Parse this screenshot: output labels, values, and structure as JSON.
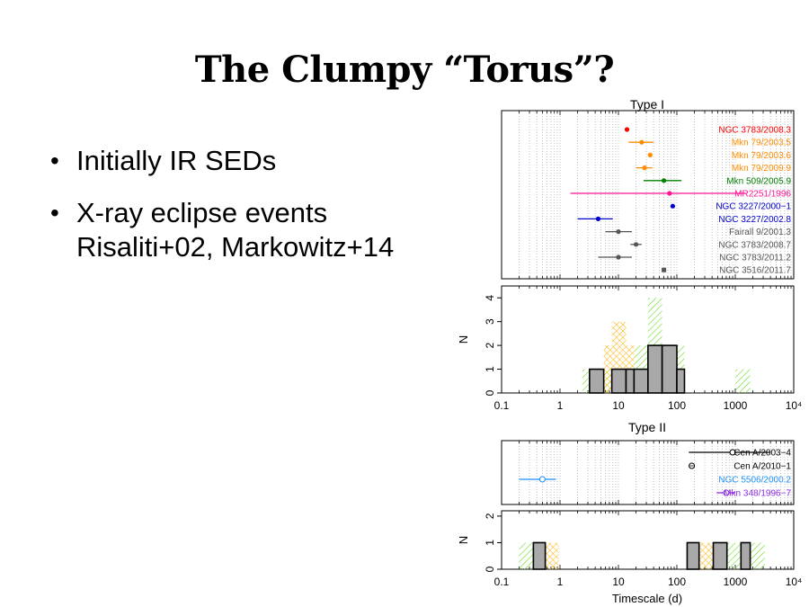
{
  "slide": {
    "title": "The Clumpy “Torus”?",
    "bullets": [
      {
        "line1": "Initially IR SEDs",
        "line2": ""
      },
      {
        "line1": "X-ray eclipse events",
        "line2": "Risaliti+02, Markowitz+14"
      }
    ]
  },
  "chart_data": [
    {
      "type": "scatter",
      "title": "Type I",
      "xscale": "log",
      "xlim": [
        0.1,
        10000
      ],
      "grid": "vertical dotted",
      "legend_position": "right (labels beside each row)",
      "series": [
        {
          "name": "NGC 3783/2008.3",
          "color": "#ff0000",
          "x": 14,
          "xerr": [
            14,
            14
          ]
        },
        {
          "name": "Mkn 79/2003.5",
          "color": "#ff8c00",
          "x": 25,
          "xerr": [
            15,
            40
          ]
        },
        {
          "name": "Mkn 79/2003.6",
          "color": "#ff8c00",
          "x": 35,
          "xerr": [
            32,
            38
          ]
        },
        {
          "name": "Mkn 79/2009.9",
          "color": "#ff8c00",
          "x": 28,
          "xerr": [
            20,
            38
          ]
        },
        {
          "name": "Mkn 509/2005.9",
          "color": "#008000",
          "x": 60,
          "xerr": [
            27,
            120
          ]
        },
        {
          "name": "MR2251/1996",
          "color": "#ff1493",
          "x": 75,
          "xerr": [
            1.5,
            1500
          ]
        },
        {
          "name": "NGC 3227/2000−1",
          "color": "#0000cd",
          "x": 85,
          "xerr": [
            85,
            85
          ]
        },
        {
          "name": "NGC 3227/2002.8",
          "color": "#0000cd",
          "x": 4.5,
          "xerr": [
            2,
            8
          ]
        },
        {
          "name": "Fairall 9/2001.3",
          "color": "#555555",
          "x": 10,
          "xerr": [
            6,
            17
          ]
        },
        {
          "name": "NGC 3783/2008.7",
          "color": "#555555",
          "x": 20,
          "xerr": [
            16,
            25
          ]
        },
        {
          "name": "NGC 3783/2011.2",
          "color": "#555555",
          "x": 10,
          "xerr": [
            4.5,
            17
          ]
        },
        {
          "name": "NGC 3516/2011.7",
          "color": "#555555",
          "x": 60,
          "xerr": [
            60,
            60
          ],
          "marker": "square"
        }
      ]
    },
    {
      "type": "histogram",
      "title": "",
      "ylabel": "N",
      "xscale": "log",
      "xlim": [
        0.1,
        10000
      ],
      "ylim": [
        0,
        4.5
      ],
      "yticks": [
        0,
        1,
        2,
        3,
        4
      ],
      "xticks": [
        "0.1",
        "1",
        "10",
        "100",
        "1000",
        "10⁴"
      ],
      "series": [
        {
          "name": "green hatched",
          "bins": [
            {
              "from": 2.4,
              "to": 3.2,
              "n": 1
            },
            {
              "from": 3.2,
              "to": 5.6,
              "n": 1
            },
            {
              "from": 5.6,
              "to": 7.7,
              "n": 1
            },
            {
              "from": 7.7,
              "to": 13.5,
              "n": 1
            },
            {
              "from": 13.5,
              "to": 18.5,
              "n": 1
            },
            {
              "from": 18.5,
              "to": 32,
              "n": 2
            },
            {
              "from": 32,
              "to": 56,
              "n": 4
            },
            {
              "from": 56,
              "to": 100,
              "n": 2
            },
            {
              "from": 100,
              "to": 135,
              "n": 2
            },
            {
              "from": 1000,
              "to": 1800,
              "n": 1
            }
          ]
        },
        {
          "name": "orange cross-hatched",
          "bins": [
            {
              "from": 3.2,
              "to": 5.6,
              "n": 1
            },
            {
              "from": 5.6,
              "to": 7.7,
              "n": 2
            },
            {
              "from": 7.7,
              "to": 13.5,
              "n": 3
            },
            {
              "from": 13.5,
              "to": 18.5,
              "n": 2
            },
            {
              "from": 18.5,
              "to": 32,
              "n": 1
            },
            {
              "from": 32,
              "to": 56,
              "n": 1
            },
            {
              "from": 56,
              "to": 100,
              "n": 1
            }
          ]
        },
        {
          "name": "gray filled",
          "bins": [
            {
              "from": 3.2,
              "to": 5.6,
              "n": 1
            },
            {
              "from": 7.7,
              "to": 13.5,
              "n": 1
            },
            {
              "from": 13.5,
              "to": 18.5,
              "n": 1
            },
            {
              "from": 18.5,
              "to": 32,
              "n": 1
            },
            {
              "from": 32,
              "to": 56,
              "n": 2
            },
            {
              "from": 56,
              "to": 100,
              "n": 2
            },
            {
              "from": 100,
              "to": 135,
              "n": 1
            }
          ]
        }
      ],
      "baseline_range": [
        0.2,
        6000
      ]
    },
    {
      "type": "scatter",
      "title": "Type II",
      "xscale": "log",
      "xlim": [
        0.1,
        10000
      ],
      "grid": "vertical dotted",
      "legend_position": "right (labels beside each row)",
      "series": [
        {
          "name": "Cen A/2003−4",
          "color": "#000000",
          "x": 900,
          "xerr": [
            160,
            4000
          ],
          "marker": "open"
        },
        {
          "name": "Cen A/2010−1",
          "color": "#000000",
          "x": 180,
          "xerr": [
            180,
            180
          ],
          "marker": "open-cross"
        },
        {
          "name": "NGC 5506/2000.2",
          "color": "#1e90ff",
          "x": 0.5,
          "xerr": [
            0.2,
            0.85
          ],
          "marker": "open"
        },
        {
          "name": "Mkn 348/1996−7",
          "color": "#8a2be2",
          "x": 700,
          "xerr": [
            480,
            1000
          ],
          "marker": "open"
        }
      ]
    },
    {
      "type": "histogram",
      "title": "",
      "xlabel": "Timescale (d)",
      "ylabel": "N",
      "xscale": "log",
      "xlim": [
        0.1,
        10000
      ],
      "ylim": [
        0,
        2
      ],
      "yticks": [
        0,
        1,
        2
      ],
      "xticks": [
        "0.1",
        "1",
        "10",
        "100",
        "1000",
        "10⁴"
      ],
      "series": [
        {
          "name": "green hatched",
          "bins": [
            {
              "from": 0.2,
              "to": 0.35,
              "n": 1
            },
            {
              "from": 0.35,
              "to": 0.56,
              "n": 1
            },
            {
              "from": 150,
              "to": 240,
              "n": 1
            },
            {
              "from": 420,
              "to": 720,
              "n": 1
            },
            {
              "from": 720,
              "to": 1250,
              "n": 1
            },
            {
              "from": 1250,
              "to": 1800,
              "n": 1
            },
            {
              "from": 1800,
              "to": 3200,
              "n": 1
            }
          ]
        },
        {
          "name": "orange cross-hatched",
          "bins": [
            {
              "from": 0.56,
              "to": 0.95,
              "n": 1
            },
            {
              "from": 240,
              "to": 420,
              "n": 1
            },
            {
              "from": 420,
              "to": 720,
              "n": 1
            }
          ]
        },
        {
          "name": "gray filled",
          "bins": [
            {
              "from": 0.35,
              "to": 0.56,
              "n": 1
            },
            {
              "from": 150,
              "to": 240,
              "n": 1
            },
            {
              "from": 420,
              "to": 720,
              "n": 1
            },
            {
              "from": 1250,
              "to": 1800,
              "n": 1
            }
          ]
        }
      ],
      "baseline_range": [
        0.2,
        6000
      ]
    }
  ]
}
